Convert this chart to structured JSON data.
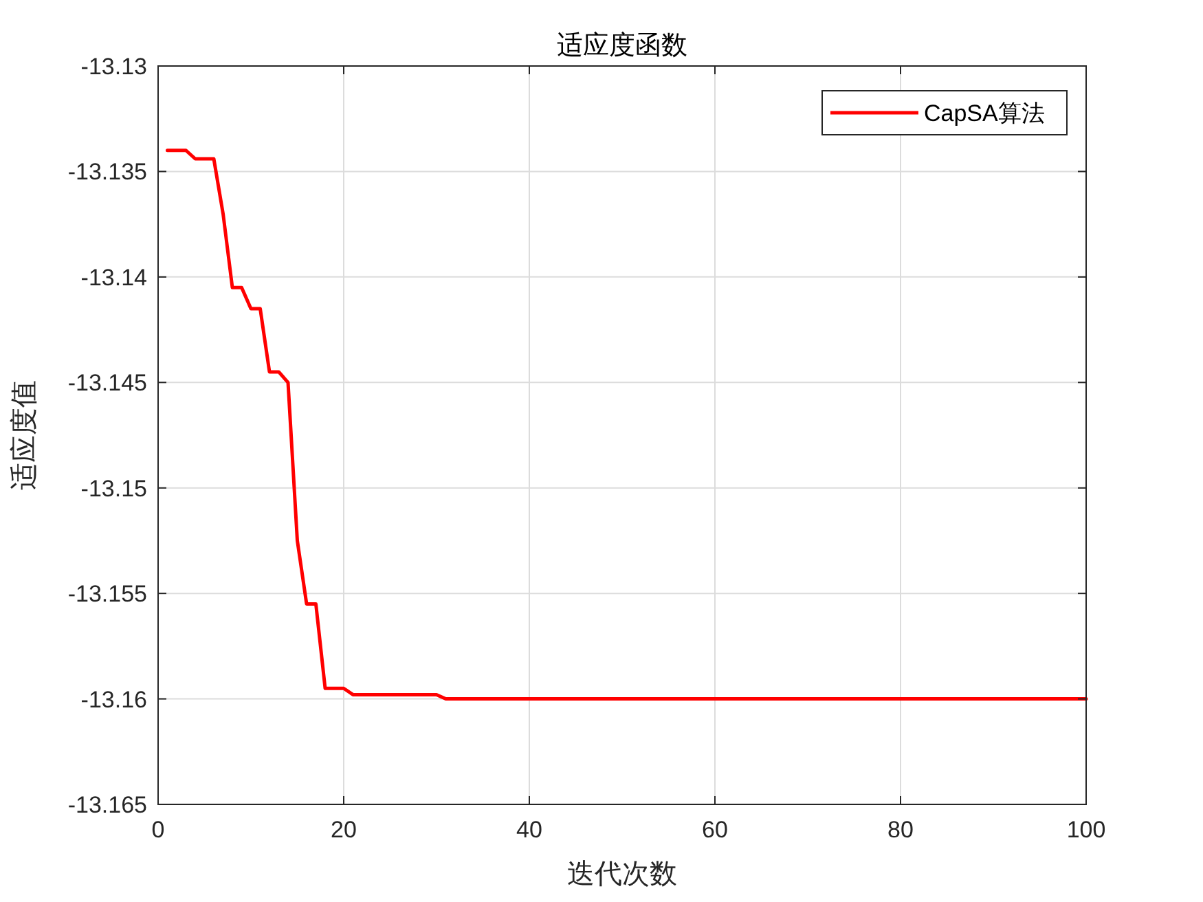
{
  "chart_data": {
    "type": "line",
    "title": "适应度函数",
    "xlabel": "迭代次数",
    "ylabel": "适应度值",
    "xlim": [
      0,
      100
    ],
    "xticks": [
      0,
      20,
      40,
      60,
      80,
      100
    ],
    "ylim": [
      -13.165,
      -13.13
    ],
    "yticks": [
      -13.165,
      -13.16,
      -13.155,
      -13.15,
      -13.145,
      -13.14,
      -13.135,
      -13.13
    ],
    "grid": true,
    "legend": "top right",
    "line_style": "solid",
    "marker": "none",
    "series": [
      {
        "name": "CapSA算法",
        "color": "#ff0000",
        "x": [
          1,
          3,
          4,
          6,
          7,
          8,
          9,
          10,
          11,
          12,
          13,
          14,
          15,
          16,
          17,
          18,
          20,
          21,
          30,
          31,
          100
        ],
        "values": [
          -13.134,
          -13.134,
          -13.1344,
          -13.1344,
          -13.137,
          -13.1405,
          -13.1405,
          -13.1415,
          -13.1415,
          -13.1445,
          -13.1445,
          -13.145,
          -13.1525,
          -13.1555,
          -13.1555,
          -13.1595,
          -13.1595,
          -13.1598,
          -13.1598,
          -13.16,
          -13.16
        ]
      }
    ]
  }
}
